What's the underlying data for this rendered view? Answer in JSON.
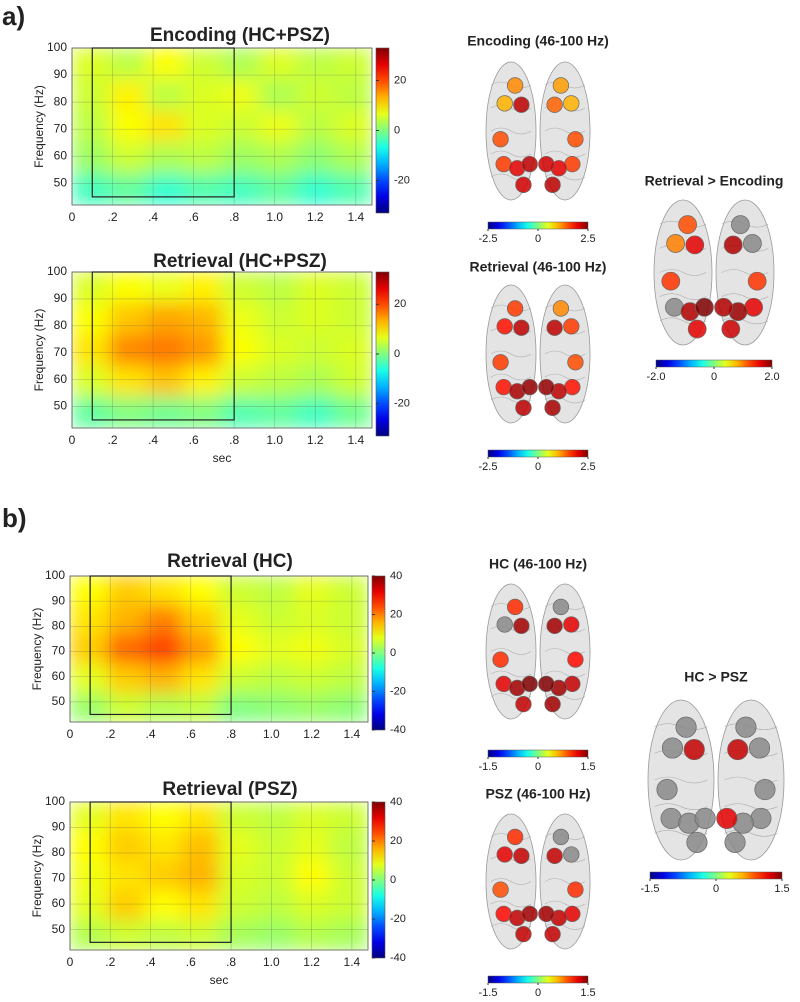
{
  "panel_labels": [
    "a)",
    "b)"
  ],
  "chart_data": [
    {
      "type": "heatmap",
      "title": "Encoding (HC+PSZ)",
      "ylabel": "Frequency (Hz)",
      "xlim": [
        0,
        1.48
      ],
      "ylim": [
        42,
        100
      ],
      "xticks": [
        0,
        {
          "value": 0.2,
          "label": ".2"
        },
        {
          "value": 0.4,
          "label": ".4"
        },
        {
          "value": 0.6,
          "label": ".6"
        },
        {
          "value": 0.8,
          "label": ".8"
        },
        {
          "value": 1.0,
          "label": "1.0"
        },
        {
          "value": 1.2,
          "label": "1.2"
        },
        {
          "value": 1.4,
          "label": "1.4"
        }
      ],
      "yticks": [
        50,
        60,
        70,
        80,
        90,
        100
      ],
      "grid": true,
      "clim": [
        -33,
        33
      ],
      "cticks": [
        20,
        0,
        -20
      ],
      "window": {
        "x": [
          0.1,
          0.8
        ],
        "y": [
          45,
          100
        ]
      },
      "z": [
        [
          6,
          4,
          8,
          5,
          3,
          6,
          4,
          5
        ],
        [
          5,
          9,
          4,
          6,
          7,
          3,
          5,
          4
        ],
        [
          4,
          8,
          10,
          6,
          5,
          7,
          4,
          6
        ],
        [
          2,
          5,
          3,
          4,
          2,
          3,
          1,
          3
        ],
        [
          -4,
          -2,
          -5,
          -3,
          -4,
          -2,
          -5,
          -3
        ]
      ]
    },
    {
      "type": "heatmap",
      "title": "Retrieval (HC+PSZ)",
      "ylabel": "Frequency (Hz)",
      "xlabel": "sec",
      "xlim": [
        0,
        1.48
      ],
      "ylim": [
        42,
        100
      ],
      "xticks": [
        0,
        {
          "value": 0.2,
          "label": ".2"
        },
        {
          "value": 0.4,
          "label": ".4"
        },
        {
          "value": 0.6,
          "label": ".6"
        },
        {
          "value": 0.8,
          "label": ".8"
        },
        {
          "value": 1.0,
          "label": "1.0"
        },
        {
          "value": 1.2,
          "label": "1.2"
        },
        {
          "value": 1.4,
          "label": "1.4"
        }
      ],
      "yticks": [
        50,
        60,
        70,
        80,
        90,
        100
      ],
      "grid": true,
      "clim": [
        -33,
        33
      ],
      "cticks": [
        20,
        0,
        -20
      ],
      "window": {
        "x": [
          0.1,
          0.8
        ],
        "y": [
          45,
          100
        ]
      },
      "z": [
        [
          6,
          8,
          7,
          9,
          5,
          4,
          6,
          5
        ],
        [
          8,
          12,
          14,
          13,
          7,
          5,
          6,
          5
        ],
        [
          10,
          16,
          17,
          15,
          8,
          6,
          5,
          6
        ],
        [
          6,
          10,
          12,
          9,
          5,
          4,
          3,
          5
        ],
        [
          -2,
          0,
          -1,
          0,
          -3,
          -2,
          -4,
          -1
        ]
      ]
    },
    {
      "type": "heatmap",
      "title": "Retrieval (HC)",
      "ylabel": "Frequency (Hz)",
      "xlim": [
        0,
        1.48
      ],
      "ylim": [
        42,
        100
      ],
      "xticks": [
        0,
        {
          "value": 0.2,
          "label": ".2"
        },
        {
          "value": 0.4,
          "label": ".4"
        },
        {
          "value": 0.6,
          "label": ".6"
        },
        {
          "value": 0.8,
          "label": ".8"
        },
        {
          "value": 1.0,
          "label": "1.0"
        },
        {
          "value": 1.2,
          "label": "1.2"
        },
        {
          "value": 1.4,
          "label": "1.4"
        }
      ],
      "yticks": [
        50,
        60,
        70,
        80,
        90,
        100
      ],
      "grid": true,
      "clim": [
        -40,
        40
      ],
      "cticks": [
        40,
        20,
        0,
        -20,
        -40
      ],
      "window": {
        "x": [
          0.1,
          0.8
        ],
        "y": [
          45,
          100
        ]
      },
      "z": [
        [
          10,
          14,
          12,
          10,
          6,
          5,
          8,
          6
        ],
        [
          12,
          16,
          20,
          14,
          8,
          6,
          7,
          6
        ],
        [
          14,
          22,
          25,
          18,
          10,
          8,
          9,
          7
        ],
        [
          8,
          14,
          16,
          12,
          6,
          5,
          6,
          5
        ],
        [
          2,
          6,
          4,
          5,
          0,
          1,
          2,
          1
        ]
      ]
    },
    {
      "type": "heatmap",
      "title": "Retrieval (PSZ)",
      "ylabel": "Frequency (Hz)",
      "xlabel": "sec",
      "xlim": [
        0,
        1.48
      ],
      "ylim": [
        42,
        100
      ],
      "xticks": [
        0,
        {
          "value": 0.2,
          "label": ".2"
        },
        {
          "value": 0.4,
          "label": ".4"
        },
        {
          "value": 0.6,
          "label": ".6"
        },
        {
          "value": 0.8,
          "label": ".8"
        },
        {
          "value": 1.0,
          "label": "1.0"
        },
        {
          "value": 1.2,
          "label": "1.2"
        },
        {
          "value": 1.4,
          "label": "1.4"
        }
      ],
      "yticks": [
        50,
        60,
        70,
        80,
        90,
        100
      ],
      "grid": true,
      "clim": [
        -40,
        40
      ],
      "cticks": [
        40,
        20,
        0,
        -20,
        -40
      ],
      "window": {
        "x": [
          0.1,
          0.8
        ],
        "y": [
          45,
          100
        ]
      },
      "z": [
        [
          8,
          12,
          10,
          12,
          6,
          5,
          7,
          6
        ],
        [
          10,
          14,
          12,
          15,
          8,
          6,
          8,
          5
        ],
        [
          9,
          12,
          14,
          16,
          7,
          6,
          10,
          6
        ],
        [
          8,
          14,
          10,
          12,
          6,
          5,
          7,
          6
        ],
        [
          4,
          6,
          5,
          6,
          3,
          2,
          4,
          3
        ]
      ]
    },
    {
      "type": "brain",
      "title": "Encoding (46-100 Hz)",
      "clim": [
        -2.5,
        2.5
      ],
      "cticks": [
        -2.5,
        0,
        2.5
      ],
      "values": [
        1.2,
        1.0,
        2.2,
        1.5,
        1.6,
        2.0,
        2.2,
        2.1,
        1.1,
        1.0,
        1.4,
        1.5,
        1.6,
        2.0,
        2.1,
        2.2
      ]
    },
    {
      "type": "brain",
      "title": "Retrieval (46-100 Hz)",
      "clim": [
        -2.5,
        2.5
      ],
      "cticks": [
        -2.5,
        0,
        2.5
      ],
      "values": [
        1.6,
        1.8,
        2.2,
        1.6,
        1.8,
        2.3,
        2.4,
        2.2,
        1.2,
        1.6,
        2.2,
        1.5,
        1.8,
        2.2,
        2.4,
        2.3
      ]
    },
    {
      "type": "brain",
      "title": "Retrieval > Encoding",
      "clim": [
        -2,
        2
      ],
      "cticks": [
        {
          "value": -2,
          "label": "-2.0"
        },
        0,
        {
          "value": 2,
          "label": "2.0"
        }
      ],
      "values": [
        1.2,
        1.0,
        1.6,
        1.3,
        null,
        1.8,
        2.0,
        1.6,
        null,
        null,
        1.8,
        1.3,
        1.6,
        1.9,
        1.8,
        1.7
      ]
    },
    {
      "type": "brain",
      "title": "HC (46-100 Hz)",
      "clim": [
        -1.5,
        1.5
      ],
      "cticks": [
        -1.5,
        0,
        1.5
      ],
      "values": [
        1.0,
        null,
        1.4,
        1.0,
        1.2,
        1.4,
        1.5,
        1.3,
        null,
        1.2,
        1.4,
        1.1,
        1.3,
        1.4,
        1.5,
        1.4
      ]
    },
    {
      "type": "brain",
      "title": "PSZ (46-100 Hz)",
      "clim": [
        -1.5,
        1.5
      ],
      "cticks": [
        -1.5,
        0,
        1.5
      ],
      "values": [
        1.0,
        1.2,
        1.3,
        0.9,
        1.1,
        1.3,
        1.4,
        1.3,
        null,
        null,
        1.3,
        1.0,
        1.2,
        1.3,
        1.4,
        1.3
      ]
    },
    {
      "type": "brain",
      "title": "HC > PSZ",
      "clim": [
        -1.5,
        1.5
      ],
      "cticks": [
        -1.5,
        0,
        1.5
      ],
      "values": [
        null,
        null,
        1.3,
        null,
        null,
        null,
        null,
        null,
        null,
        null,
        1.3,
        null,
        null,
        null,
        1.2,
        null
      ]
    }
  ]
}
